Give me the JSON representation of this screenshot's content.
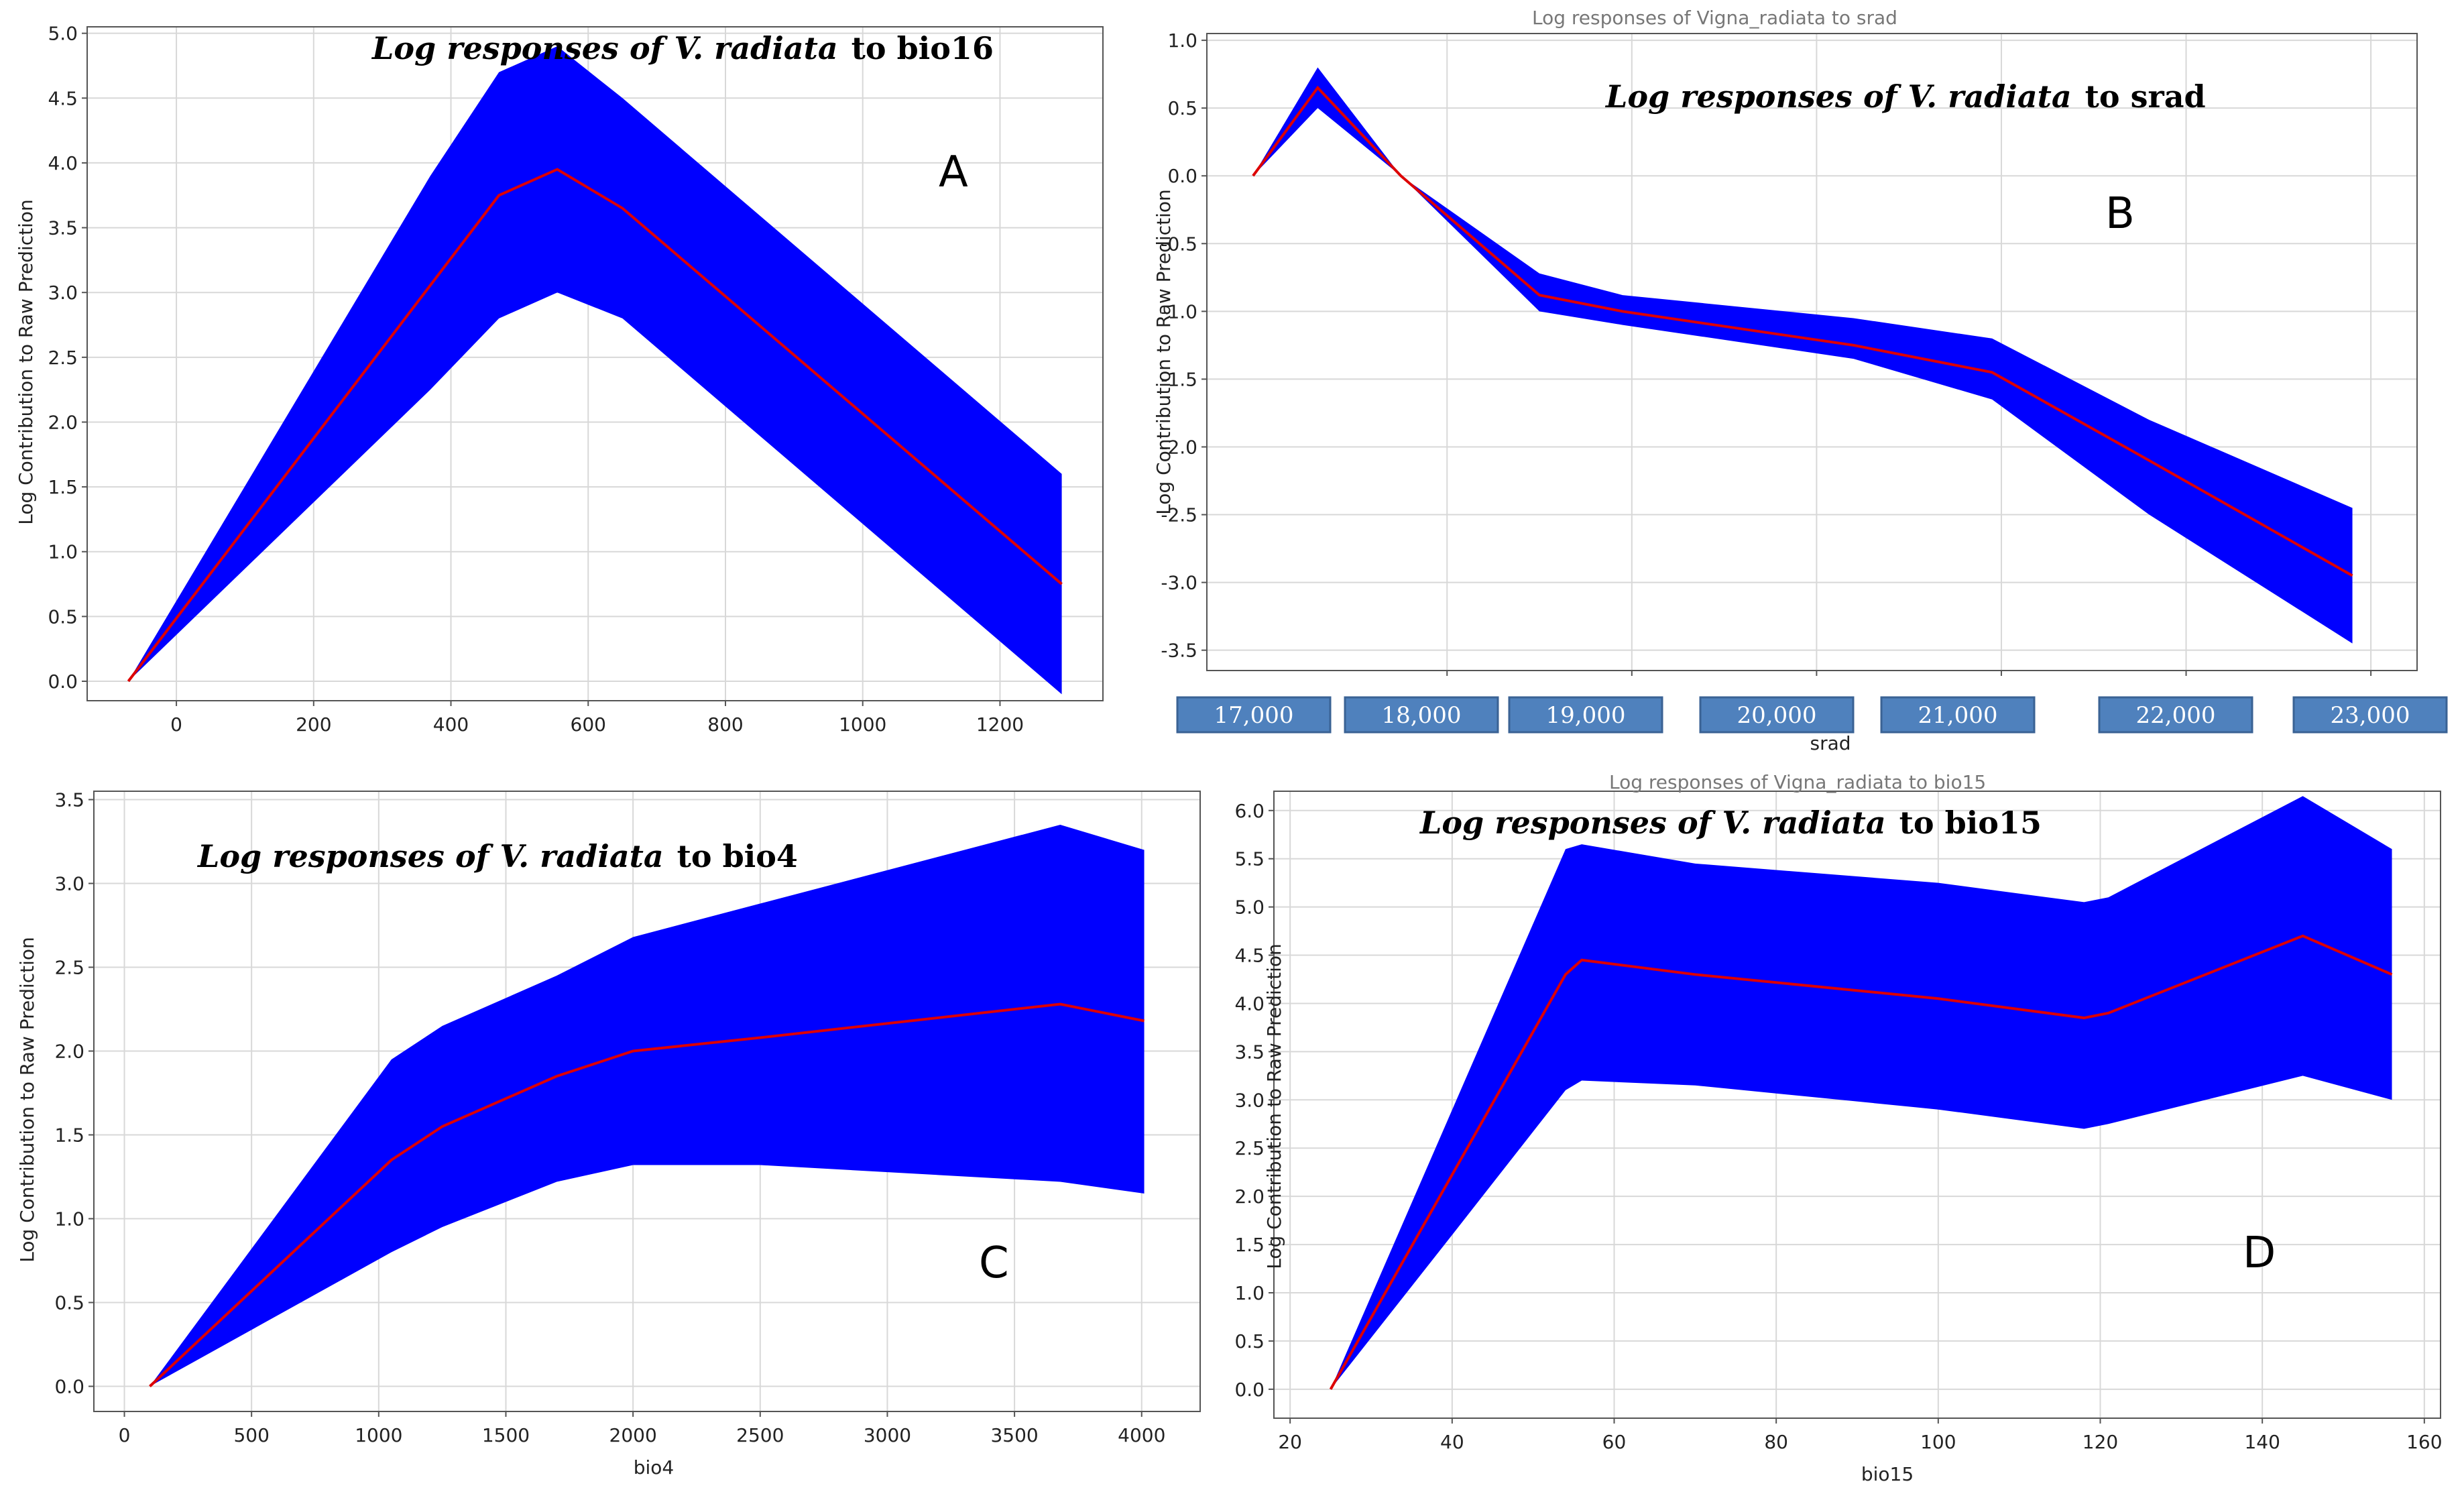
{
  "colors": {
    "band": "#0000ff",
    "line": "#dd0000",
    "grid": "#d8d8d8",
    "box": "#4f81bd"
  },
  "chart_data": [
    {
      "panel": "A",
      "type": "line",
      "title_prefix": "Log responses of V. radiata",
      "title_suffix": "to  bio16",
      "xlabel": "",
      "ylabel": "Log Contribution to Raw Prediction",
      "xlim": [
        -130,
        1350
      ],
      "ylim": [
        -0.15,
        5.05
      ],
      "xticks": [
        0,
        200,
        400,
        600,
        800,
        1000,
        1200
      ],
      "xtick_labels": [
        "0",
        "200",
        "400",
        "600",
        "800",
        "1000",
        "1200"
      ],
      "yticks": [
        0,
        0.5,
        1,
        1.5,
        2,
        2.5,
        3,
        3.5,
        4,
        4.5,
        5
      ],
      "ytick_labels": [
        "0.0",
        "0.5",
        "1.0",
        "1.5",
        "2.0",
        "2.5",
        "3.0",
        "3.5",
        "4.0",
        "4.5",
        "5.0"
      ],
      "mean": {
        "x": [
          -70,
          470,
          555,
          650,
          1290
        ],
        "y": [
          0,
          3.75,
          3.95,
          3.65,
          0.75
        ]
      },
      "upper": {
        "x": [
          -70,
          370,
          470,
          555,
          650,
          1290
        ],
        "y": [
          0,
          3.9,
          4.7,
          4.9,
          4.5,
          1.6
        ]
      },
      "lower": {
        "x": [
          -70,
          370,
          470,
          555,
          650,
          1290
        ],
        "y": [
          0,
          2.25,
          2.8,
          3.0,
          2.8,
          -0.1
        ]
      }
    },
    {
      "panel": "B",
      "type": "line",
      "title_prefix": "Log responses of V. radiata",
      "title_suffix": "to  srad",
      "ghost_title": "Log responses of Vigna_radiata to srad",
      "xlabel": "srad",
      "ylabel": "Log Contribution to Raw Prediction",
      "xlim": [
        16700,
        23250
      ],
      "ylim": [
        -3.65,
        1.05
      ],
      "xticks": [
        18000,
        19000,
        20000,
        21000,
        22000,
        23000
      ],
      "xtick_labels": [],
      "yticks": [
        -3.5,
        -3,
        -2.5,
        -2,
        -1.5,
        -1,
        -0.5,
        0,
        0.5,
        1
      ],
      "ytick_labels": [
        "-3.5",
        "-3.0",
        "-2.5",
        "-2.0",
        "-1.5",
        "-1.0",
        "-0.5",
        "0.0",
        "0.5",
        "1.0"
      ],
      "x_boxes": [
        "17,000",
        "18,000",
        "19,000",
        "20,000",
        "21,000",
        "22,000",
        "23,000"
      ],
      "mean": {
        "x": [
          16950,
          17300,
          17750,
          18500,
          18950,
          20200,
          20950,
          21800,
          22900
        ],
        "y": [
          0,
          0.65,
          0,
          -0.88,
          -1.0,
          -1.25,
          -1.45,
          -2.1,
          -2.95
        ]
      },
      "upper": {
        "x": [
          16950,
          17300,
          17750,
          18500,
          18950,
          20200,
          20950,
          21800,
          22900
        ],
        "y": [
          0,
          0.8,
          0,
          -0.72,
          -0.88,
          -1.05,
          -1.2,
          -1.8,
          -2.45
        ]
      },
      "lower": {
        "x": [
          16950,
          17300,
          17750,
          18500,
          18950,
          20200,
          20950,
          21800,
          22900
        ],
        "y": [
          0,
          0.5,
          0,
          -1.0,
          -1.1,
          -1.35,
          -1.65,
          -2.5,
          -3.45
        ]
      }
    },
    {
      "panel": "C",
      "type": "line",
      "title_prefix": "Log responses of V. radiata",
      "title_suffix": "to  bio4",
      "xlabel": "bio4",
      "ylabel": "Log Contribution to Raw Prediction",
      "xlim": [
        -120,
        4230
      ],
      "ylim": [
        -0.15,
        3.55
      ],
      "xticks": [
        0,
        500,
        1000,
        1500,
        2000,
        2500,
        3000,
        3500,
        4000
      ],
      "xtick_labels": [
        "0",
        "500",
        "1000",
        "1500",
        "2000",
        "2500",
        "3000",
        "3500",
        "4000"
      ],
      "yticks": [
        0,
        0.5,
        1,
        1.5,
        2,
        2.5,
        3,
        3.5
      ],
      "ytick_labels": [
        "0.0",
        "0.5",
        "1.0",
        "1.5",
        "2.0",
        "2.5",
        "3.0",
        "3.5"
      ],
      "mean": {
        "x": [
          100,
          1050,
          1250,
          1700,
          2000,
          2500,
          3680,
          4010
        ],
        "y": [
          0,
          1.35,
          1.55,
          1.85,
          2.0,
          2.08,
          2.28,
          2.18
        ]
      },
      "upper": {
        "x": [
          100,
          1050,
          1250,
          1700,
          2000,
          2500,
          3680,
          4010
        ],
        "y": [
          0,
          1.95,
          2.15,
          2.45,
          2.68,
          2.88,
          3.35,
          3.2
        ]
      },
      "lower": {
        "x": [
          100,
          1050,
          1250,
          1700,
          2000,
          2500,
          3680,
          4010
        ],
        "y": [
          0,
          0.8,
          0.95,
          1.22,
          1.32,
          1.32,
          1.22,
          1.15
        ]
      }
    },
    {
      "panel": "D",
      "type": "line",
      "title_prefix": "Log responses of V. radiata",
      "title_suffix": "to  bio15",
      "ghost_title": "Log responses of Vigna_radiata to bio15",
      "xlabel": "bio15",
      "ylabel": "Log Contribution to Raw Prediction",
      "xlim": [
        18,
        162
      ],
      "ylim": [
        -0.3,
        6.2
      ],
      "xticks": [
        20,
        40,
        60,
        80,
        100,
        120,
        140,
        160
      ],
      "xtick_labels": [
        "20",
        "40",
        "60",
        "80",
        "100",
        "120",
        "140",
        "160"
      ],
      "yticks": [
        0,
        0.5,
        1,
        1.5,
        2,
        2.5,
        3,
        3.5,
        4,
        4.5,
        5,
        5.5,
        6
      ],
      "ytick_labels": [
        "0.0",
        "0.5",
        "1.0",
        "1.5",
        "2.0",
        "2.5",
        "3.0",
        "3.5",
        "4.0",
        "4.5",
        "5.0",
        "5.5",
        "6.0"
      ],
      "mean": {
        "x": [
          25,
          54,
          56,
          70,
          100,
          118,
          121,
          145,
          156
        ],
        "y": [
          0,
          4.3,
          4.45,
          4.3,
          4.05,
          3.85,
          3.9,
          4.7,
          4.3
        ]
      },
      "upper": {
        "x": [
          25,
          54,
          56,
          70,
          100,
          118,
          121,
          145,
          156
        ],
        "y": [
          0,
          5.6,
          5.65,
          5.45,
          5.25,
          5.05,
          5.1,
          6.15,
          5.6
        ]
      },
      "lower": {
        "x": [
          25,
          40,
          54,
          56,
          70,
          100,
          118,
          121,
          145,
          156
        ],
        "y": [
          0,
          1.6,
          3.1,
          3.2,
          3.15,
          2.9,
          2.7,
          2.75,
          3.25,
          3.0
        ]
      }
    }
  ],
  "panel_letters": [
    "A",
    "B",
    "C",
    "D"
  ]
}
